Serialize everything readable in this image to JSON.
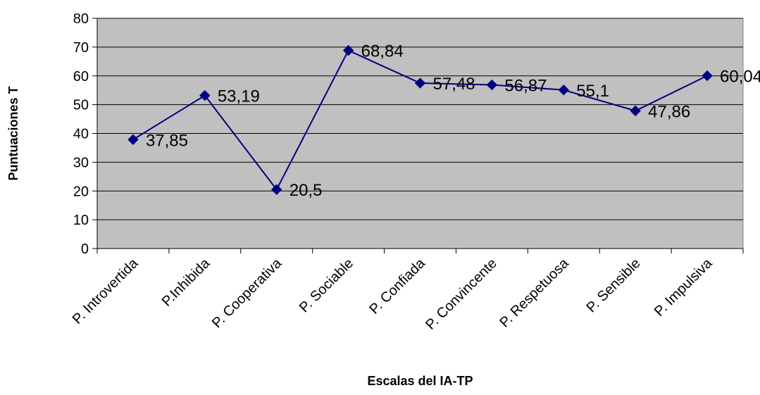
{
  "chart_data": {
    "type": "line",
    "title": "",
    "xlabel": "Escalas del IA-TP",
    "ylabel": "Puntuaciones T",
    "categories": [
      "P. Introvertida",
      "P.Inhibida",
      "P. Cooperativa",
      "P. Sociable",
      "P. Confiada",
      "P. Convincente",
      "P. Respetuosa",
      "P. Sensible",
      "P. Impulsiva"
    ],
    "series": [
      {
        "values": [
          37.85,
          53.19,
          20.5,
          68.84,
          57.48,
          56.87,
          55.1,
          47.86,
          60.04
        ],
        "labels": [
          "37,85",
          "53,19",
          "20,5",
          "68,84",
          "57,48",
          "56,87",
          "55,1",
          "47,86",
          "60,04"
        ]
      }
    ],
    "ylim": [
      0,
      80
    ],
    "yticks": [
      "0",
      "10",
      "20",
      "30",
      "40",
      "50",
      "60",
      "70",
      "80"
    ],
    "grid": true,
    "legend": "none",
    "colors": {
      "plot_background": "#c0c0c0",
      "line": "#000080",
      "marker": "#000080",
      "gridline": "#000000"
    }
  }
}
